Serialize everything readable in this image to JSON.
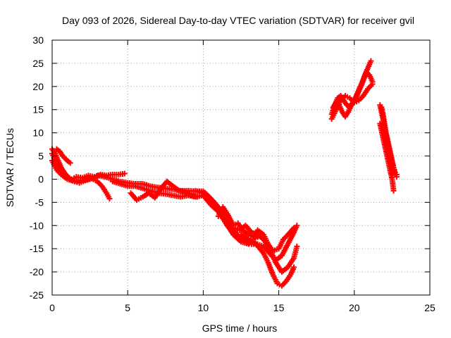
{
  "chart_data": {
    "type": "scatter",
    "title": "Day 093 of 2026, Sidereal Day-to-day VTEC variation (SDTVAR) for receiver gvil",
    "xlabel": "GPS time / hours",
    "ylabel": "SDTVAR / TECUs",
    "xlim": [
      0,
      25
    ],
    "ylim": [
      -25,
      30
    ],
    "xticks": [
      0,
      5,
      10,
      15,
      20,
      25
    ],
    "yticks": [
      -25,
      -20,
      -15,
      -10,
      -5,
      0,
      5,
      10,
      15,
      20,
      25,
      30
    ],
    "grid": true,
    "legend": "none",
    "marker": "plus",
    "color": "#ff0000",
    "series": [
      {
        "x": [
          0.0,
          0.2,
          0.4,
          0.6,
          0.8,
          1.0,
          1.3,
          1.6,
          2.0,
          2.4,
          2.8,
          3.2,
          3.6,
          4.0,
          4.4,
          4.8
        ],
        "y": [
          6.5,
          5.5,
          4.0,
          2.5,
          1.5,
          0.5,
          0.0,
          0.5,
          0.3,
          0.8,
          0.5,
          1.0,
          0.8,
          1.0,
          1.0,
          1.2
        ]
      },
      {
        "x": [
          0.0,
          0.3,
          0.6,
          0.9,
          1.2,
          1.5,
          1.8,
          2.2,
          2.6,
          3.0,
          3.3,
          3.6,
          3.8
        ],
        "y": [
          5.5,
          3.5,
          2.0,
          1.0,
          0.0,
          -0.5,
          -0.8,
          -0.3,
          0.2,
          -0.5,
          -1.5,
          -3.0,
          -4.2
        ]
      },
      {
        "x": [
          0.3,
          0.5,
          0.7,
          1.0,
          1.2
        ],
        "y": [
          6.5,
          6.0,
          5.0,
          4.0,
          3.5
        ]
      },
      {
        "x": [
          0.0,
          0.3,
          0.6,
          1.0,
          1.5,
          2.0,
          2.5,
          3.0
        ],
        "y": [
          4.0,
          2.0,
          1.0,
          0.0,
          -0.5,
          -0.2,
          0.0,
          0.5
        ]
      },
      {
        "x": [
          3.0,
          3.5,
          4.0,
          4.5,
          5.0,
          5.5,
          6.0,
          6.5,
          7.0,
          7.5,
          8.0,
          8.5,
          9.0,
          9.5,
          10.0,
          10.3,
          10.6,
          11.0,
          11.3,
          11.6,
          12.0,
          12.3,
          12.6,
          13.0,
          13.3,
          13.6
        ],
        "y": [
          0.8,
          0.5,
          0.0,
          -0.5,
          -0.8,
          -1.0,
          -1.0,
          -1.5,
          -1.8,
          -2.0,
          -2.2,
          -2.5,
          -2.5,
          -2.6,
          -2.6,
          -3.5,
          -4.5,
          -6.0,
          -8.0,
          -10.0,
          -11.5,
          -12.5,
          -13.0,
          -13.5,
          -13.0,
          -12.5
        ]
      },
      {
        "x": [
          4.0,
          4.5,
          5.0,
          5.5,
          6.0,
          6.5,
          7.0,
          7.5,
          8.0,
          8.5,
          9.0,
          9.5,
          10.0,
          10.5,
          11.0,
          11.5,
          12.0,
          12.5,
          13.0
        ],
        "y": [
          -0.5,
          -1.0,
          -1.5,
          -1.5,
          -2.0,
          -2.5,
          -3.0,
          -3.2,
          -3.5,
          -3.8,
          -3.5,
          -3.8,
          -3.5,
          -5.5,
          -7.0,
          -9.5,
          -12.0,
          -13.5,
          -14.0
        ]
      },
      {
        "x": [
          5.2,
          5.6,
          6.0,
          6.4,
          6.8,
          7.2,
          7.6,
          8.0,
          8.4,
          8.8,
          9.2,
          9.6
        ],
        "y": [
          -3.0,
          -4.5,
          -3.8,
          -3.0,
          -4.0,
          -2.0,
          -0.5,
          -1.5,
          -2.5,
          -2.8,
          -3.5,
          -3.8
        ]
      },
      {
        "x": [
          9.5,
          10.0,
          10.4,
          10.8,
          11.2,
          11.6,
          12.0,
          12.4,
          12.8,
          13.2,
          13.6,
          14.0,
          14.4,
          14.8,
          15.2,
          15.6,
          16.0,
          16.2
        ],
        "y": [
          -2.5,
          -3.0,
          -4.0,
          -5.5,
          -7.0,
          -9.0,
          -11.0,
          -12.5,
          -13.5,
          -14.0,
          -14.0,
          -14.5,
          -16.0,
          -17.5,
          -16.5,
          -14.0,
          -11.5,
          -10.0
        ]
      },
      {
        "x": [
          12.0,
          12.4,
          12.8,
          13.2,
          13.6,
          14.0,
          14.4,
          14.8,
          15.2,
          15.6,
          16.0,
          16.2
        ],
        "y": [
          -10.5,
          -11.0,
          -10.0,
          -11.5,
          -12.0,
          -13.0,
          -15.0,
          -18.0,
          -20.0,
          -19.0,
          -17.0,
          -14.5
        ]
      },
      {
        "x": [
          12.5,
          13.0,
          13.5,
          14.0,
          14.3,
          14.6,
          14.9,
          15.2,
          15.5,
          15.8,
          16.0
        ],
        "y": [
          -12.0,
          -13.0,
          -14.0,
          -16.0,
          -18.0,
          -20.5,
          -22.5,
          -23.0,
          -22.0,
          -20.5,
          -19.0
        ]
      },
      {
        "x": [
          11.0,
          11.3,
          11.6,
          12.0,
          12.3,
          12.6,
          13.0,
          13.3,
          13.6,
          14.0,
          14.3,
          14.6,
          15.0,
          15.3,
          15.6,
          16.0
        ],
        "y": [
          -8.0,
          -6.0,
          -7.5,
          -10.0,
          -9.5,
          -11.0,
          -12.0,
          -12.5,
          -11.0,
          -12.0,
          -14.0,
          -15.5,
          -15.0,
          -13.0,
          -12.0,
          -10.5
        ]
      },
      {
        "x": [
          18.5,
          18.7,
          18.9,
          19.1,
          19.3,
          19.5,
          19.7,
          19.9,
          20.1,
          20.3,
          20.5,
          20.7,
          20.9,
          21.1
        ],
        "y": [
          14.0,
          16.0,
          17.5,
          18.0,
          17.0,
          16.0,
          15.5,
          16.5,
          17.5,
          19.0,
          20.5,
          22.5,
          24.0,
          25.5
        ]
      },
      {
        "x": [
          18.6,
          18.8,
          19.0,
          19.2,
          19.4,
          19.6,
          19.8,
          20.0,
          20.2,
          20.4,
          20.6,
          20.8,
          21.0,
          21.2
        ],
        "y": [
          15.5,
          16.5,
          16.0,
          14.5,
          13.5,
          14.5,
          16.0,
          17.0,
          18.5,
          20.0,
          21.5,
          23.0,
          22.5,
          21.0
        ]
      },
      {
        "x": [
          18.5,
          18.8,
          19.1,
          19.4,
          19.7,
          20.0,
          20.3,
          20.6,
          20.9,
          21.2
        ],
        "y": [
          13.0,
          15.0,
          17.0,
          18.0,
          17.5,
          16.5,
          17.0,
          18.0,
          19.5,
          20.5
        ]
      },
      {
        "x": [
          21.7,
          21.8,
          21.9,
          22.0,
          22.1,
          22.2,
          22.3,
          22.4,
          22.5,
          22.6,
          22.7,
          22.8
        ],
        "y": [
          16.0,
          14.5,
          13.0,
          11.0,
          9.5,
          8.0,
          6.5,
          5.0,
          3.5,
          2.5,
          1.5,
          1.0
        ]
      },
      {
        "x": [
          21.7,
          21.8,
          21.9,
          22.0,
          22.1,
          22.2,
          22.3,
          22.4,
          22.5,
          22.6
        ],
        "y": [
          12.0,
          10.5,
          9.0,
          7.5,
          6.0,
          4.5,
          3.0,
          1.5,
          0.0,
          -2.5
        ]
      },
      {
        "x": [
          21.8,
          21.9,
          22.0,
          22.1,
          22.2,
          22.3,
          22.4,
          22.5,
          22.6,
          22.7,
          22.8
        ],
        "y": [
          15.5,
          14.0,
          12.0,
          10.0,
          8.5,
          7.0,
          5.5,
          4.0,
          2.5,
          1.0,
          0.5
        ]
      }
    ]
  }
}
